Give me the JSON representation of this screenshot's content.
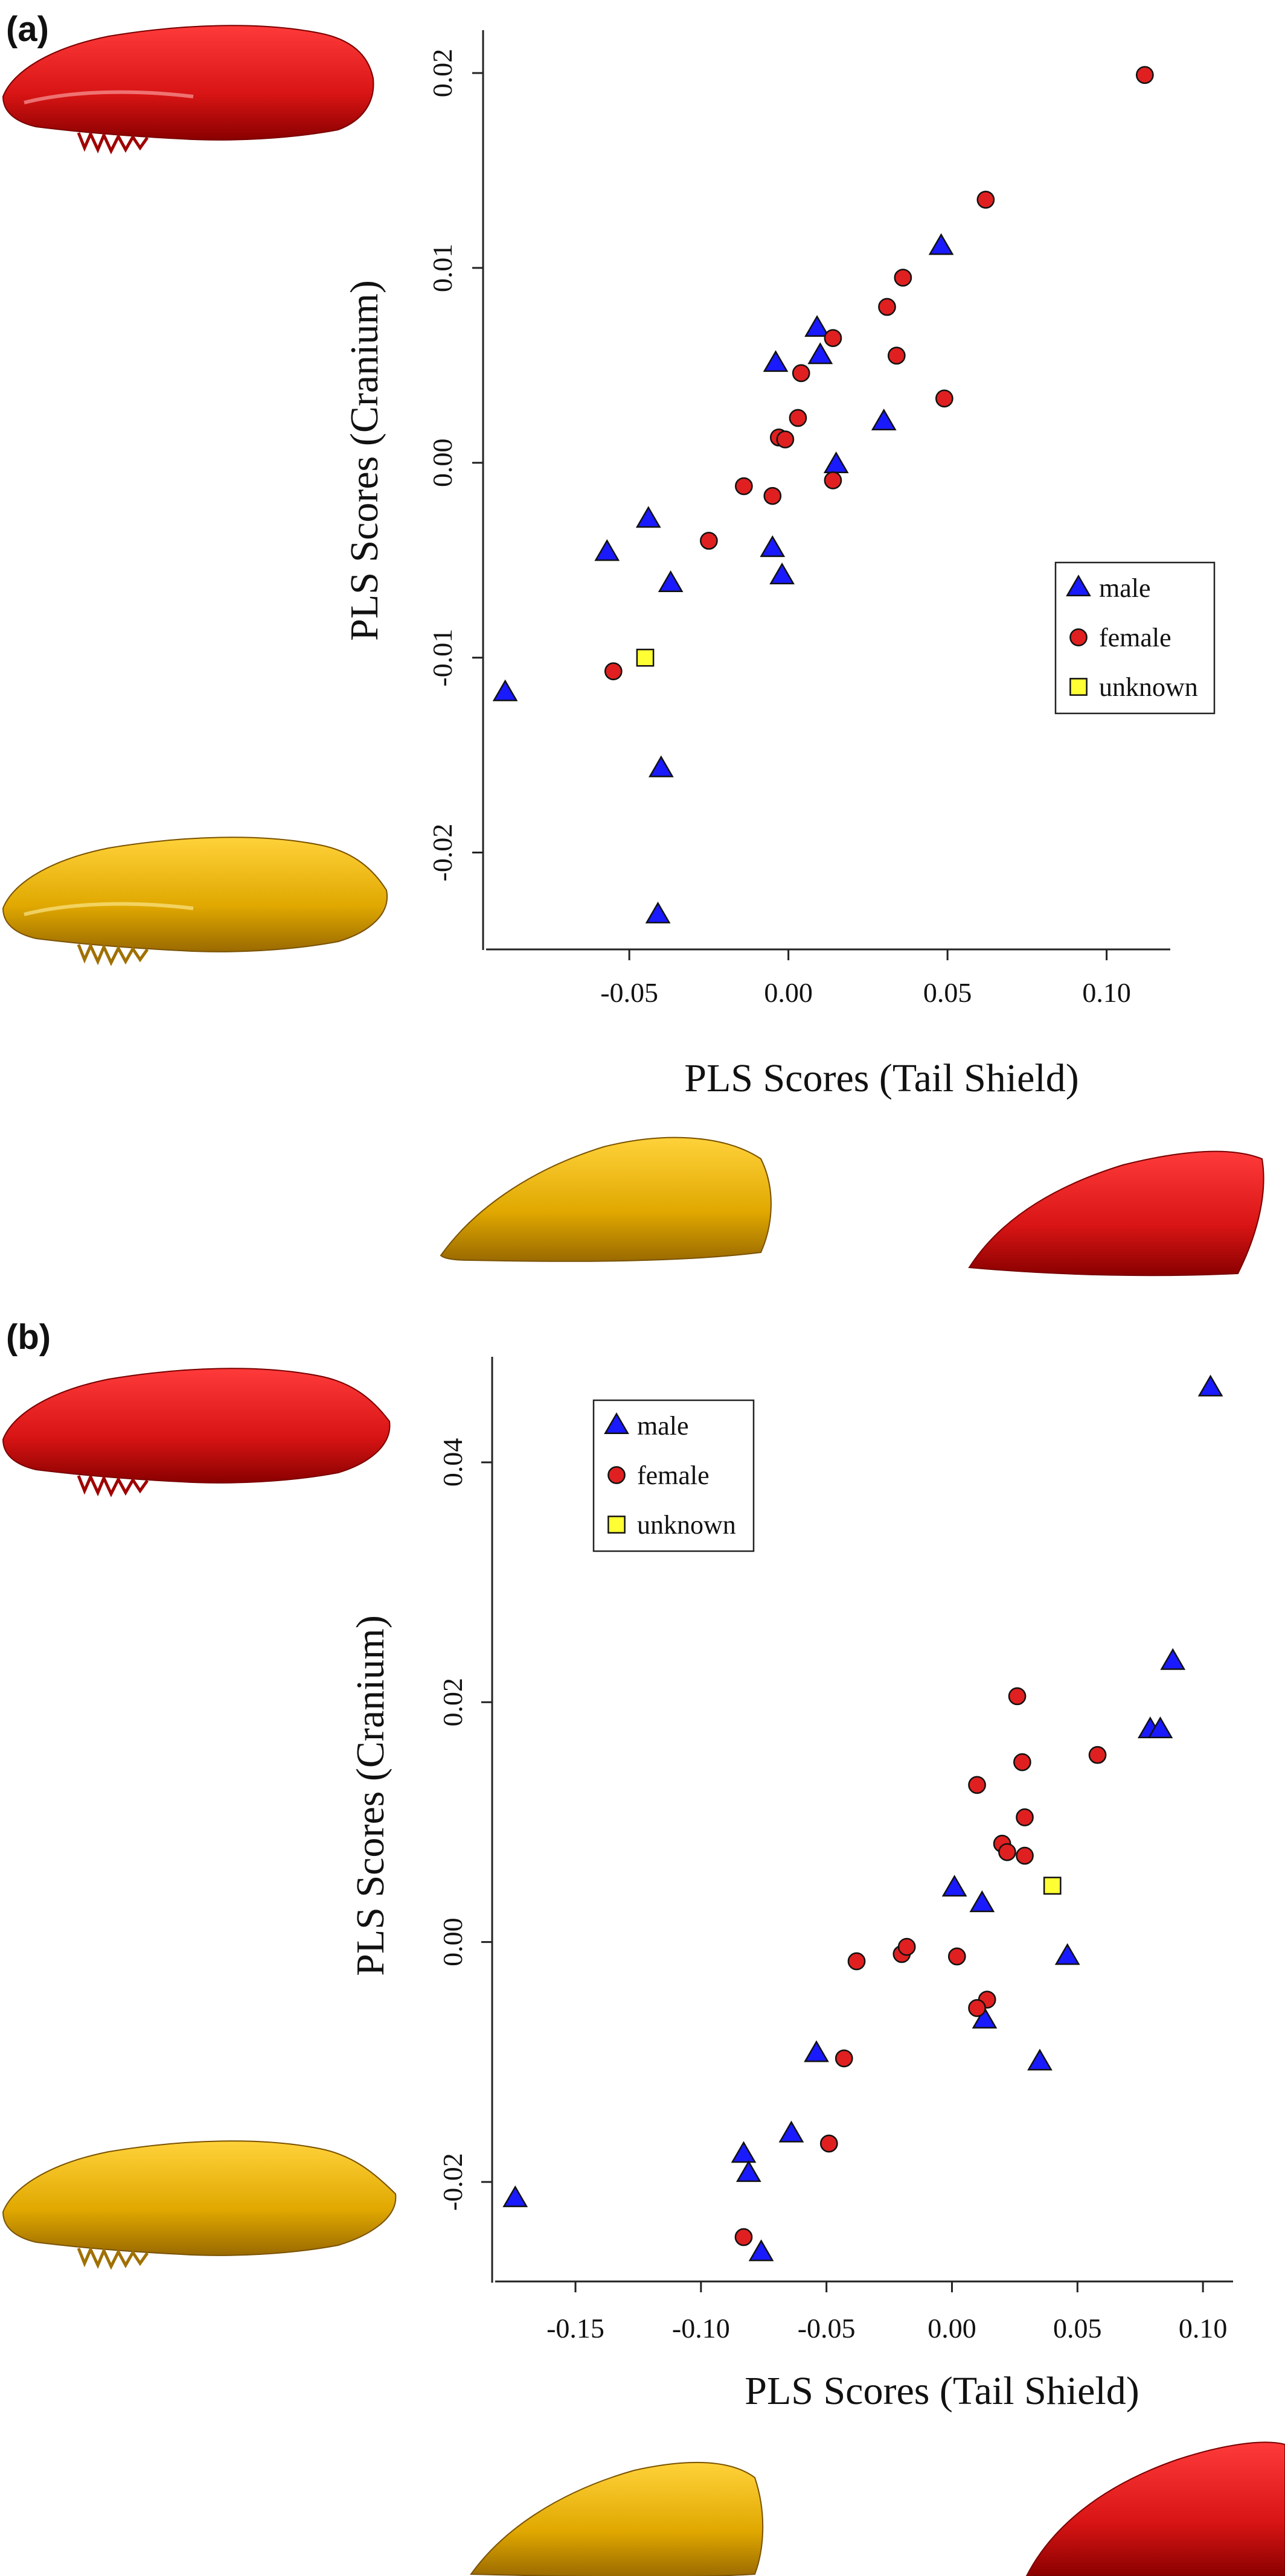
{
  "chart_data": [
    {
      "panel_label": "(a)",
      "type": "scatter",
      "xlabel": "PLS Scores (Tail Shield)",
      "ylabel": "PLS Scores (Cranium)",
      "x_ticks": [
        -0.05,
        0.0,
        0.05,
        0.1
      ],
      "x_tick_labels": [
        "-0.05",
        "0.00",
        "0.05",
        "0.10"
      ],
      "y_ticks": [
        -0.02,
        -0.01,
        0.0,
        0.01,
        0.02
      ],
      "y_tick_labels": [
        "-0.02",
        "-0.01",
        "0.00",
        "0.01",
        "0.02"
      ],
      "xlim": [
        -0.095,
        0.12
      ],
      "ylim": [
        -0.025,
        0.0222
      ],
      "legend_position": "right",
      "legend": [
        "male",
        "female",
        "unknown"
      ],
      "series": [
        {
          "name": "male",
          "marker": "triangle",
          "color": "#1a1aff",
          "points": [
            [
              -0.089,
              -0.0118
            ],
            [
              -0.057,
              -0.0046
            ],
            [
              -0.044,
              -0.0029
            ],
            [
              -0.037,
              -0.0062
            ],
            [
              -0.04,
              -0.0157
            ],
            [
              -0.041,
              -0.0232
            ],
            [
              -0.005,
              -0.0044
            ],
            [
              -0.002,
              -0.0058
            ],
            [
              -0.004,
              0.0051
            ],
            [
              0.009,
              0.0069
            ],
            [
              0.01,
              0.0055
            ],
            [
              0.015,
              -0.0001
            ],
            [
              0.03,
              0.0021
            ],
            [
              0.048,
              0.0111
            ]
          ]
        },
        {
          "name": "female",
          "marker": "circle",
          "color": "#e02020",
          "points": [
            [
              0.112,
              0.0199
            ],
            [
              0.062,
              0.0135
            ],
            [
              0.036,
              0.0095
            ],
            [
              0.031,
              0.008
            ],
            [
              0.034,
              0.0055
            ],
            [
              0.049,
              0.0033
            ],
            [
              0.014,
              0.0064
            ],
            [
              0.004,
              0.0046
            ],
            [
              0.003,
              0.0023
            ],
            [
              -0.003,
              0.0013
            ],
            [
              -0.001,
              0.0012
            ],
            [
              -0.014,
              -0.0012
            ],
            [
              -0.005,
              -0.0017
            ],
            [
              0.014,
              -0.0009
            ],
            [
              -0.025,
              -0.004
            ],
            [
              -0.055,
              -0.0107
            ]
          ]
        },
        {
          "name": "unknown",
          "marker": "square",
          "color": "#ffff33",
          "points": [
            [
              -0.045,
              -0.01
            ]
          ]
        }
      ]
    },
    {
      "panel_label": "(b)",
      "type": "scatter",
      "xlabel": "PLS Scores (Tail Shield)",
      "ylabel": "PLS Scores (Cranium)",
      "x_ticks": [
        -0.15,
        -0.1,
        -0.05,
        0.0,
        0.05,
        0.1
      ],
      "x_tick_labels": [
        "-0.15",
        "-0.10",
        "-0.05",
        "0.00",
        "0.05",
        "0.10"
      ],
      "y_ticks": [
        -0.02,
        0.0,
        0.02,
        0.04
      ],
      "y_tick_labels": [
        "-0.02",
        "0.00",
        "0.02",
        "0.04"
      ],
      "xlim": [
        -0.182,
        0.112
      ],
      "ylim": [
        -0.0284,
        0.0488
      ],
      "legend_position": "top-left",
      "legend": [
        "male",
        "female",
        "unknown"
      ],
      "series": [
        {
          "name": "male",
          "marker": "triangle",
          "color": "#1a1aff",
          "points": [
            [
              -0.174,
              -0.0214
            ],
            [
              -0.083,
              -0.0177
            ],
            [
              -0.081,
              -0.0193
            ],
            [
              -0.076,
              -0.0259
            ],
            [
              -0.064,
              -0.016
            ],
            [
              -0.054,
              -0.0093
            ],
            [
              0.001,
              0.0045
            ],
            [
              0.012,
              0.0032
            ],
            [
              0.013,
              -0.0065
            ],
            [
              0.035,
              -0.01
            ],
            [
              0.046,
              -0.0012
            ],
            [
              0.079,
              0.0177
            ],
            [
              0.083,
              0.0177
            ],
            [
              0.088,
              0.0234
            ],
            [
              0.103,
              0.0462
            ]
          ]
        },
        {
          "name": "female",
          "marker": "circle",
          "color": "#e02020",
          "points": [
            [
              0.026,
              0.0205
            ],
            [
              0.058,
              0.0156
            ],
            [
              0.028,
              0.015
            ],
            [
              0.01,
              0.0131
            ],
            [
              0.029,
              0.0104
            ],
            [
              0.02,
              0.0082
            ],
            [
              0.022,
              0.0075
            ],
            [
              0.029,
              0.0072
            ],
            [
              -0.038,
              -0.0016
            ],
            [
              -0.02,
              -0.001
            ],
            [
              -0.018,
              -0.0004
            ],
            [
              0.002,
              -0.0012
            ],
            [
              0.014,
              -0.0048
            ],
            [
              0.01,
              -0.0055
            ],
            [
              -0.043,
              -0.0097
            ],
            [
              -0.049,
              -0.0168
            ],
            [
              -0.083,
              -0.0246
            ]
          ]
        },
        {
          "name": "unknown",
          "marker": "square",
          "color": "#ffff33",
          "points": [
            [
              0.04,
              0.0047
            ]
          ]
        }
      ]
    }
  ],
  "illustrations": [
    {
      "name": "cranium-red",
      "color": "#e01818"
    },
    {
      "name": "cranium-yellow",
      "color": "#e5b300"
    },
    {
      "name": "tail-shield-yellow",
      "color": "#e5b300"
    },
    {
      "name": "tail-shield-red",
      "color": "#e01818"
    }
  ]
}
